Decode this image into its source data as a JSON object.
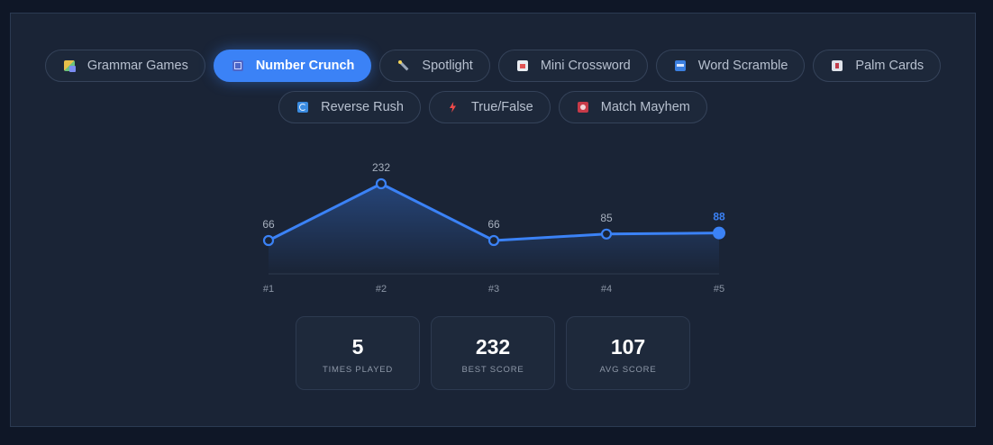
{
  "tabs_row1": [
    {
      "label": "Grammar Games",
      "icon": "grammar-icon",
      "active": false
    },
    {
      "label": "Number Crunch",
      "icon": "number-icon",
      "active": true
    },
    {
      "label": "Spotlight",
      "icon": "spotlight-icon",
      "active": false
    },
    {
      "label": "Mini Crossword",
      "icon": "crossword-icon",
      "active": false
    },
    {
      "label": "Word Scramble",
      "icon": "scramble-icon",
      "active": false
    },
    {
      "label": "Palm Cards",
      "icon": "palm-cards-icon",
      "active": false
    }
  ],
  "tabs_row2": [
    {
      "label": "Reverse Rush",
      "icon": "reverse-icon",
      "active": false
    },
    {
      "label": "True/False",
      "icon": "lightning-icon",
      "active": false
    },
    {
      "label": "Match Mayhem",
      "icon": "match-icon",
      "active": false
    }
  ],
  "chart_data": {
    "type": "line",
    "categories": [
      "#1",
      "#2",
      "#3",
      "#4",
      "#5"
    ],
    "values": [
      66,
      232,
      66,
      85,
      88
    ],
    "title": "",
    "xlabel": "",
    "ylabel": "",
    "ylim": [
      0,
      232
    ],
    "grid": false,
    "line_color": "#3b82f6",
    "highlight_last": true
  },
  "stats": [
    {
      "value": "5",
      "label": "TIMES PLAYED"
    },
    {
      "value": "232",
      "label": "BEST SCORE"
    },
    {
      "value": "107",
      "label": "AVG SCORE"
    }
  ],
  "colors": {
    "accent": "#3b82f6",
    "background": "#0f1727",
    "panel": "#1a2436"
  }
}
